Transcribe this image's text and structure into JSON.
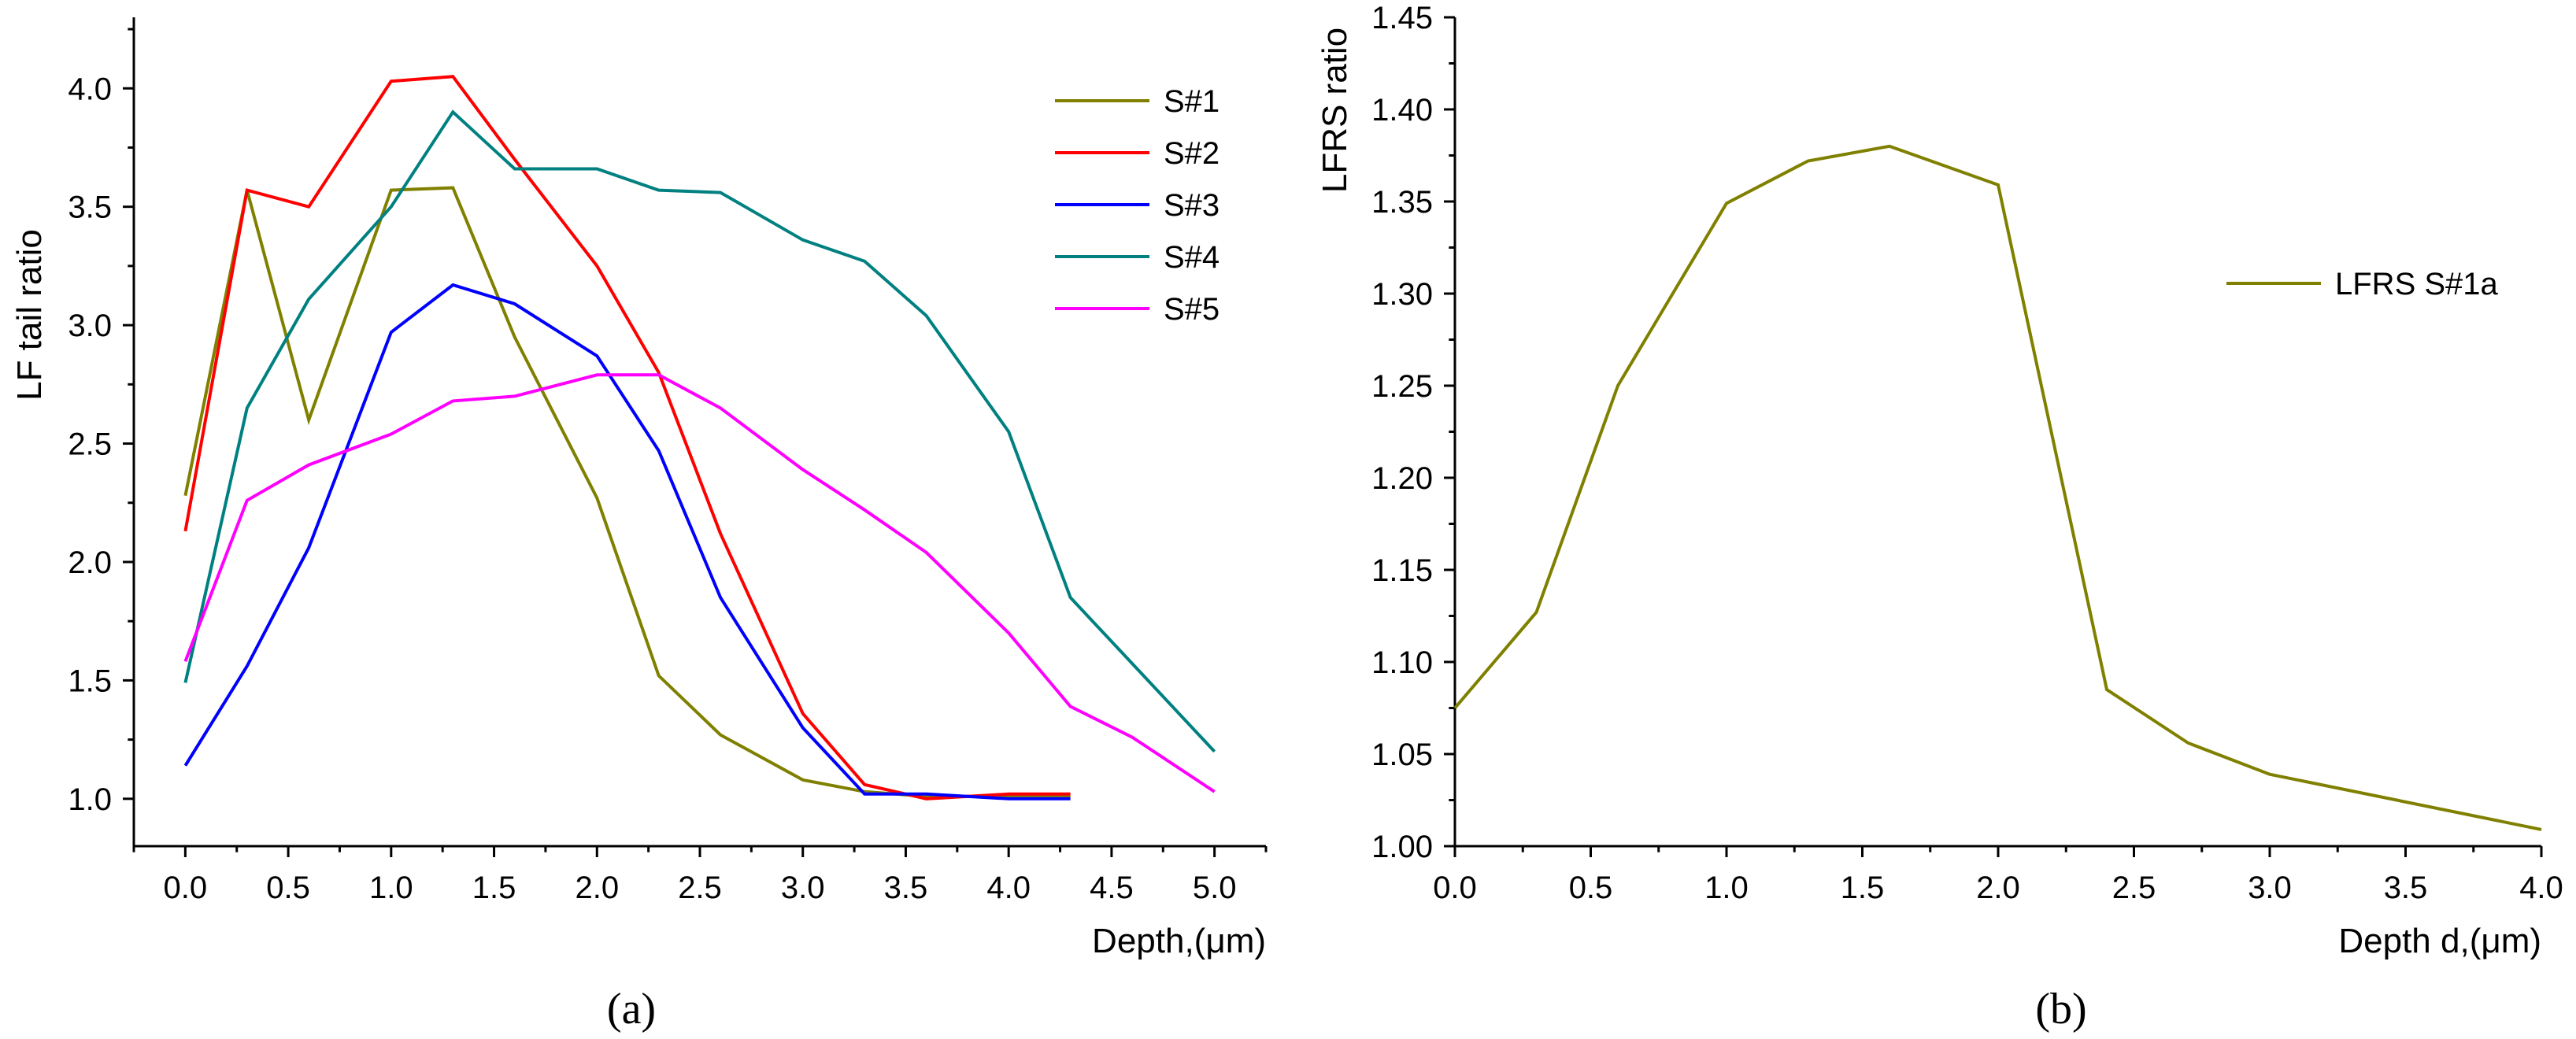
{
  "chart_data": [
    {
      "type": "line",
      "caption": "(a)",
      "xlabel": "Depth,(μm)",
      "ylabel": "LF tail ratio",
      "xlim": [
        -0.25,
        5.25
      ],
      "ylim": [
        0.8,
        4.3
      ],
      "xticks": [
        0.0,
        0.5,
        1.0,
        1.5,
        2.0,
        2.5,
        3.0,
        3.5,
        4.0,
        4.5,
        5.0
      ],
      "xtick_labels": [
        "0.0",
        "0.5",
        "1.0",
        "1.5",
        "2.0",
        "2.5",
        "3.0",
        "3.5",
        "4.0",
        "4.5",
        "5.0"
      ],
      "yticks": [
        1.0,
        1.5,
        2.0,
        2.5,
        3.0,
        3.5,
        4.0
      ],
      "ytick_labels": [
        "1.0",
        "1.5",
        "2.0",
        "2.5",
        "3.0",
        "3.5",
        "4.0"
      ],
      "legend_position": "top-right",
      "series": [
        {
          "name": "S#1",
          "color": "#808000",
          "x": [
            0.0,
            0.3,
            0.6,
            1.0,
            1.3,
            1.6,
            2.0,
            2.3,
            2.6,
            3.0,
            3.3,
            3.6,
            4.0,
            4.3
          ],
          "y": [
            2.28,
            3.57,
            2.6,
            3.57,
            3.58,
            2.95,
            2.27,
            1.52,
            1.27,
            1.08,
            1.03,
            1.01,
            1.01,
            1.01
          ]
        },
        {
          "name": "S#2",
          "color": "#ff0000",
          "x": [
            0.0,
            0.3,
            0.6,
            1.0,
            1.3,
            1.6,
            2.0,
            2.3,
            2.6,
            3.0,
            3.3,
            3.6,
            4.0,
            4.3
          ],
          "y": [
            2.13,
            3.57,
            3.5,
            4.03,
            4.05,
            3.7,
            3.25,
            2.8,
            2.12,
            1.36,
            1.06,
            1.0,
            1.02,
            1.02
          ]
        },
        {
          "name": "S#3",
          "color": "#0000ff",
          "x": [
            0.0,
            0.3,
            0.6,
            1.0,
            1.3,
            1.6,
            2.0,
            2.3,
            2.6,
            3.0,
            3.3,
            3.6,
            4.0,
            4.3
          ],
          "y": [
            1.14,
            1.56,
            2.06,
            2.97,
            3.17,
            3.09,
            2.87,
            2.47,
            1.85,
            1.3,
            1.02,
            1.02,
            1.0,
            1.0
          ]
        },
        {
          "name": "S#4",
          "color": "#008080",
          "x": [
            0.0,
            0.3,
            0.6,
            1.0,
            1.3,
            1.6,
            2.0,
            2.3,
            2.6,
            3.0,
            3.3,
            3.6,
            4.0,
            4.3,
            5.0
          ],
          "y": [
            1.49,
            2.65,
            3.11,
            3.5,
            3.9,
            3.66,
            3.66,
            3.57,
            3.56,
            3.36,
            3.27,
            3.04,
            2.55,
            1.85,
            1.2
          ]
        },
        {
          "name": "S#5",
          "color": "#ff00ff",
          "x": [
            0.0,
            0.3,
            0.6,
            1.0,
            1.3,
            1.6,
            2.0,
            2.3,
            2.6,
            3.0,
            3.3,
            3.6,
            4.0,
            4.3,
            4.6,
            5.0
          ],
          "y": [
            1.58,
            2.26,
            2.41,
            2.54,
            2.68,
            2.7,
            2.79,
            2.79,
            2.65,
            2.39,
            2.22,
            2.04,
            1.7,
            1.39,
            1.26,
            1.03
          ]
        }
      ]
    },
    {
      "type": "line",
      "caption": "(b)",
      "xlabel": "Depth d,(μm)",
      "ylabel": "LFRS ratio",
      "xlim": [
        0.0,
        4.0
      ],
      "ylim": [
        1.0,
        1.45
      ],
      "xticks": [
        0.0,
        0.5,
        1.0,
        1.5,
        2.0,
        2.5,
        3.0,
        3.5,
        4.0
      ],
      "xtick_labels": [
        "0.0",
        "0.5",
        "1.0",
        "1.5",
        "2.0",
        "2.5",
        "3.0",
        "3.5",
        "4.0"
      ],
      "yticks": [
        1.0,
        1.05,
        1.1,
        1.15,
        1.2,
        1.25,
        1.3,
        1.35,
        1.4,
        1.45
      ],
      "ytick_labels": [
        "1.00",
        "1.05",
        "1.10",
        "1.15",
        "1.20",
        "1.25",
        "1.30",
        "1.35",
        "1.40",
        "1.45"
      ],
      "legend_position": "top-right",
      "series": [
        {
          "name": "LFRS S#1a",
          "color": "#808000",
          "x": [
            0.0,
            0.3,
            0.6,
            1.0,
            1.3,
            1.6,
            2.0,
            2.4,
            2.7,
            3.0,
            4.0
          ],
          "y": [
            1.075,
            1.127,
            1.25,
            1.349,
            1.372,
            1.38,
            1.359,
            1.085,
            1.056,
            1.039,
            1.009
          ]
        }
      ]
    }
  ]
}
